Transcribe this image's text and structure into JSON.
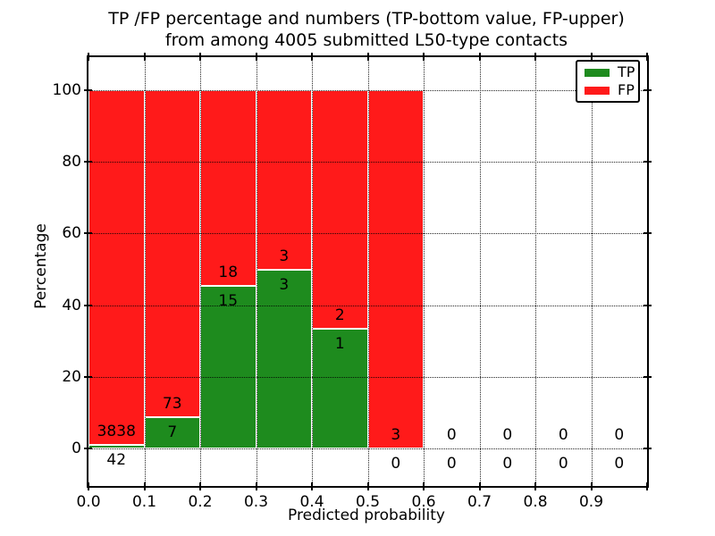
{
  "figure": {
    "title_line1": "TP /FP percentage and numbers (TP-bottom value, FP-upper)",
    "title_line2": "from among 4005 submitted L50-type contacts",
    "xlabel": "Predicted probability",
    "ylabel": "Percentage"
  },
  "legend": {
    "items": [
      {
        "name": "TP",
        "color": "#1e8b1e"
      },
      {
        "name": "FP",
        "color": "#ff1a1a"
      }
    ]
  },
  "chart_data": {
    "type": "bar",
    "subtype": "stacked-100pct-histogram-with-count-annotations",
    "title": "TP /FP percentage and numbers (TP-bottom value, FP-upper) from among 4005 submitted L50-type contacts",
    "xlabel": "Predicted probability",
    "ylabel": "Percentage",
    "total_submitted": 4005,
    "bin_edges": [
      0.0,
      0.1,
      0.2,
      0.3,
      0.4,
      0.5,
      0.6,
      0.7,
      0.8,
      0.9,
      1.0
    ],
    "xtick_labels": [
      "0.0",
      "0.1",
      "0.2",
      "0.3",
      "0.4",
      "0.5",
      "0.6",
      "0.7",
      "0.8",
      "0.9"
    ],
    "yticks": [
      0,
      20,
      40,
      60,
      80,
      100
    ],
    "xlim": [
      0.0,
      1.0
    ],
    "ylim": [
      -10.5,
      109.2
    ],
    "grid": "dotted, drawn over bars",
    "legend_position": "upper right",
    "bar_edge_color": "#ffffff",
    "series": [
      {
        "name": "TP",
        "color": "#1e8b1e",
        "counts": [
          42,
          7,
          15,
          3,
          1,
          0,
          0,
          0,
          0,
          0
        ]
      },
      {
        "name": "FP",
        "color": "#ff1a1a",
        "counts": [
          3838,
          73,
          18,
          3,
          2,
          3,
          0,
          0,
          0,
          0
        ]
      }
    ],
    "bars_note": "Each bar is stacked to 100% of bin total (TP share bottom green, FP share top red); bins with zero total have no bar, only 0/0 annotations"
  }
}
